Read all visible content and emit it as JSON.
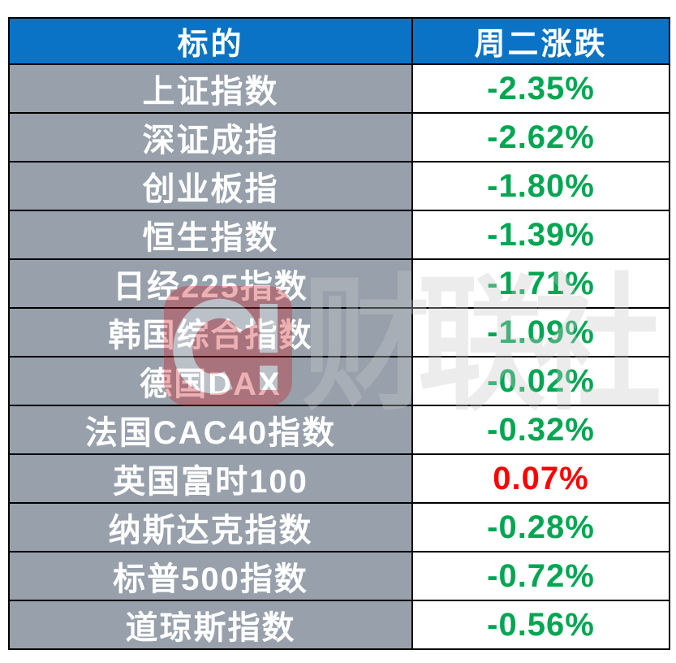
{
  "colors": {
    "header_bg": "#0a73c6",
    "header_text": "#ffffff",
    "label_bg": "#97a0ab",
    "label_text": "#ffffff",
    "value_bg": "#ffffff",
    "down_green": "#00a651",
    "up_red": "#ff0000",
    "border": "#000000"
  },
  "table": {
    "columns": [
      {
        "label": "标的"
      },
      {
        "label": "周二涨跌"
      }
    ],
    "rows": [
      {
        "name": "上证指数",
        "change": "-2.35%",
        "direction": "down"
      },
      {
        "name": "深证成指",
        "change": "-2.62%",
        "direction": "down"
      },
      {
        "name": "创业板指",
        "change": "-1.80%",
        "direction": "down"
      },
      {
        "name": "恒生指数",
        "change": "-1.39%",
        "direction": "down"
      },
      {
        "name": "日经225指数",
        "change": "-1.71%",
        "direction": "down"
      },
      {
        "name": "韩国综合指数",
        "change": "-1.09%",
        "direction": "down"
      },
      {
        "name": "德国DAX",
        "change": "-0.02%",
        "direction": "down"
      },
      {
        "name": "法国CAC40指数",
        "change": "-0.32%",
        "direction": "down"
      },
      {
        "name": "英国富时100",
        "change": "0.07%",
        "direction": "up"
      },
      {
        "name": "纳斯达克指数",
        "change": "-0.28%",
        "direction": "down"
      },
      {
        "name": "标普500指数",
        "change": "-0.72%",
        "direction": "down"
      },
      {
        "name": "道琼斯指数",
        "change": "-0.56%",
        "direction": "down"
      }
    ]
  },
  "watermark": {
    "text": "财联社",
    "logo": "cailian-press-logo",
    "logo_color": "#cc2229",
    "text_color": "#c9c9c9"
  },
  "chart_data": {
    "type": "table",
    "title": "",
    "columns": [
      "标的",
      "周二涨跌"
    ],
    "rows": [
      [
        "上证指数",
        "-2.35%"
      ],
      [
        "深证成指",
        "-2.62%"
      ],
      [
        "创业板指",
        "-1.80%"
      ],
      [
        "恒生指数",
        "-1.39%"
      ],
      [
        "日经225指数",
        "-1.71%"
      ],
      [
        "韩国综合指数",
        "-1.09%"
      ],
      [
        "德国DAX",
        "-0.02%"
      ],
      [
        "法国CAC40指数",
        "-0.32%"
      ],
      [
        "英国富时100",
        "0.07%"
      ],
      [
        "纳斯达克指数",
        "-0.28%"
      ],
      [
        "标普500指数",
        "-0.72%"
      ],
      [
        "道琼斯指数",
        "-0.56%"
      ]
    ],
    "values_pct": [
      -2.35,
      -2.62,
      -1.8,
      -1.39,
      -1.71,
      -1.09,
      -0.02,
      -0.32,
      0.07,
      -0.28,
      -0.72,
      -0.56
    ],
    "color_coding": {
      "negative": "green #00a651",
      "positive": "red #ff0000"
    },
    "layout": {
      "header_bg": "#0a73c6",
      "row_label_bg": "#97a0ab",
      "grid": "black 2px borders"
    }
  }
}
